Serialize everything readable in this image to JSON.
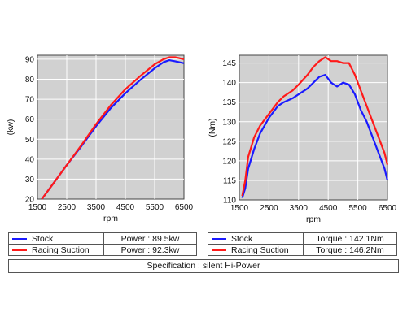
{
  "colors": {
    "stock": "#1a1aff",
    "racing": "#ff1a1a",
    "plot_bg": "#d1d1d1",
    "grid": "#ffffff"
  },
  "chart_data": [
    {
      "type": "line",
      "xlabel": "rpm",
      "ylabel": "(kw)",
      "xlim": [
        1500,
        6500
      ],
      "ylim": [
        20,
        92
      ],
      "xticks": [
        1500,
        2500,
        3500,
        4500,
        5500,
        6500
      ],
      "yticks": [
        20,
        30,
        40,
        50,
        60,
        70,
        80,
        90
      ],
      "grid": true,
      "series": [
        {
          "name": "Stock",
          "color": "#1a1aff",
          "x": [
            1650,
            2000,
            2500,
            3000,
            3500,
            4000,
            4500,
            5000,
            5500,
            5800,
            6000,
            6200,
            6500
          ],
          "y": [
            20,
            27,
            37,
            46.5,
            56.5,
            65.5,
            73,
            79.5,
            85.5,
            88.5,
            89.5,
            89,
            88
          ]
        },
        {
          "name": "Racing Suction",
          "color": "#ff1a1a",
          "x": [
            1650,
            2000,
            2500,
            3000,
            3500,
            4000,
            4500,
            5000,
            5500,
            5800,
            6000,
            6200,
            6500
          ],
          "y": [
            20,
            27,
            37,
            47,
            57.5,
            67,
            75,
            81.5,
            87.5,
            90,
            91,
            91,
            90
          ]
        }
      ]
    },
    {
      "type": "line",
      "xlabel": "rpm",
      "ylabel": "(Nm)",
      "xlim": [
        1500,
        6500
      ],
      "ylim": [
        110,
        147
      ],
      "xticks": [
        1500,
        2500,
        3500,
        4500,
        5500,
        6500
      ],
      "yticks": [
        110,
        115,
        120,
        125,
        130,
        135,
        140,
        145
      ],
      "grid": true,
      "series": [
        {
          "name": "Stock",
          "color": "#1a1aff",
          "x": [
            1600,
            1700,
            1800,
            2000,
            2200,
            2500,
            2800,
            3000,
            3300,
            3500,
            3800,
            4000,
            4200,
            4400,
            4600,
            4800,
            5000,
            5200,
            5400,
            5600,
            5800,
            6000,
            6200,
            6400,
            6500
          ],
          "y": [
            110.5,
            113,
            118,
            123,
            127,
            131,
            134,
            135,
            136,
            137,
            138.5,
            140,
            141.5,
            142,
            140,
            139,
            140,
            139.5,
            137,
            133,
            130,
            126,
            122,
            118,
            115
          ]
        },
        {
          "name": "Racing Suction",
          "color": "#ff1a1a",
          "x": [
            1600,
            1700,
            1800,
            2000,
            2200,
            2500,
            2800,
            3000,
            3300,
            3500,
            3800,
            4000,
            4200,
            4400,
            4600,
            4800,
            5000,
            5200,
            5400,
            5600,
            5800,
            6000,
            6200,
            6400,
            6500
          ],
          "y": [
            111,
            115,
            121,
            126,
            129,
            132,
            135,
            136.5,
            138,
            139.5,
            142,
            144,
            145.5,
            146.5,
            145.5,
            145.5,
            145,
            145,
            142,
            138,
            134,
            130,
            126,
            122,
            119
          ]
        }
      ]
    }
  ],
  "legends": [
    {
      "rows": [
        {
          "name": "Stock",
          "color": "#1a1aff",
          "value": "Power : 89.5kw"
        },
        {
          "name": "Racing Suction",
          "color": "#ff1a1a",
          "value": "Power : 92.3kw"
        }
      ]
    },
    {
      "rows": [
        {
          "name": "Stock",
          "color": "#1a1aff",
          "value": "Torque : 142.1Nm"
        },
        {
          "name": "Racing Suction",
          "color": "#ff1a1a",
          "value": "Torque : 146.2Nm"
        }
      ]
    }
  ],
  "specification": "Specification : silent Hi-Power"
}
